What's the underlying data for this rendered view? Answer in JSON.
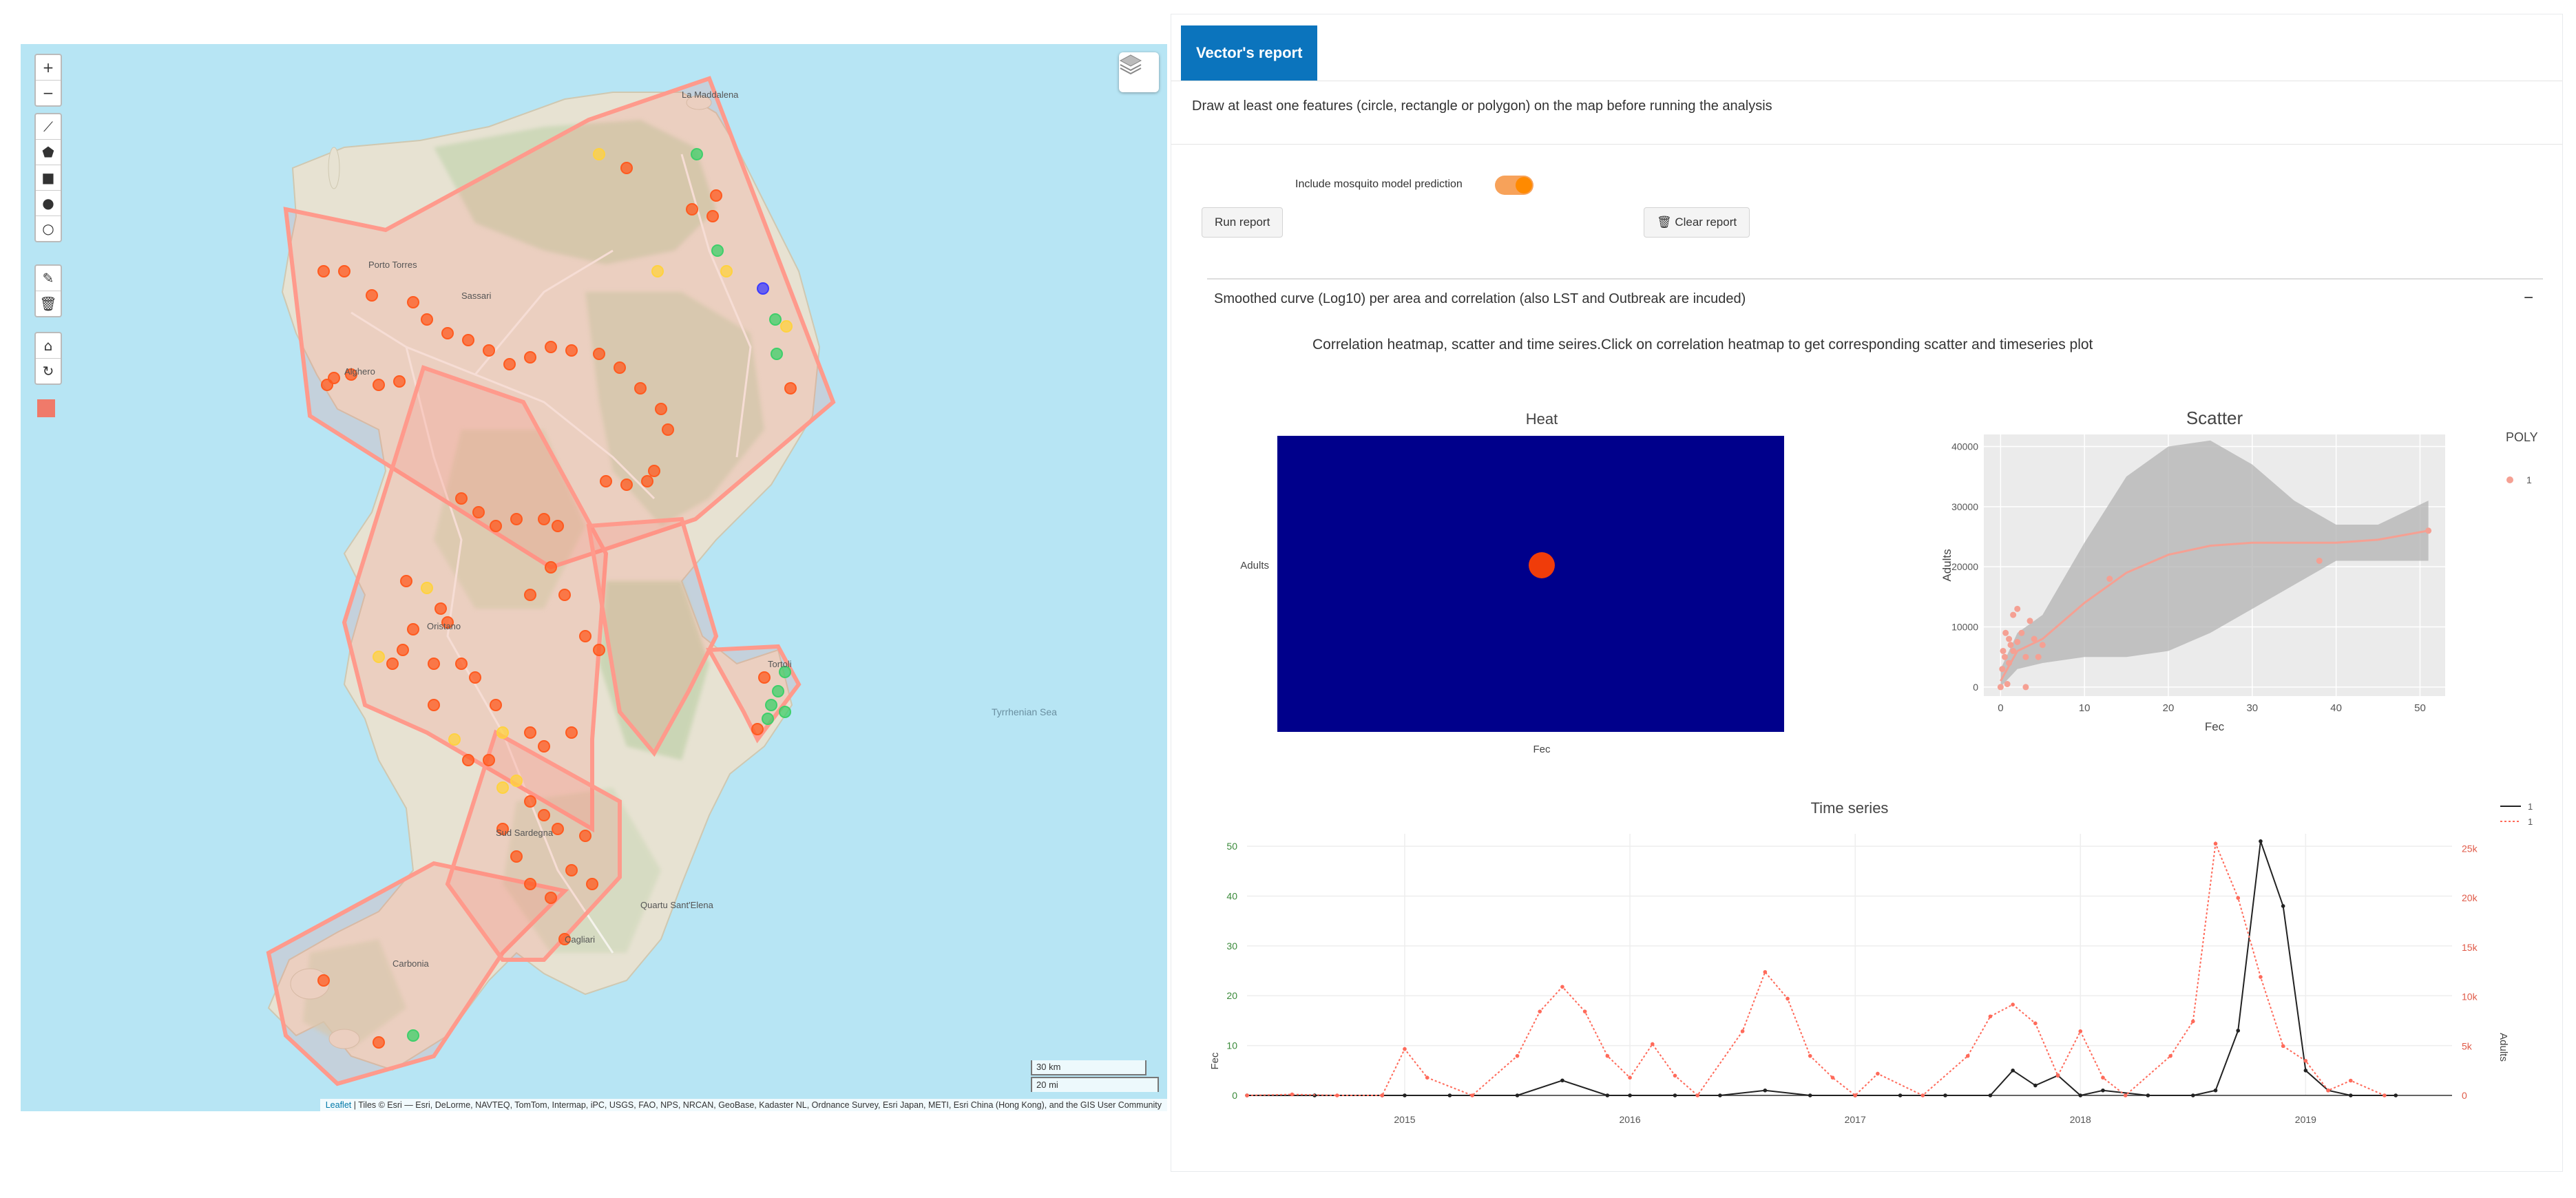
{
  "map": {
    "zoom_in": "+",
    "zoom_out": "−",
    "draw_tools": [
      {
        "icon": "polyline-icon",
        "glyph": "⟋"
      },
      {
        "icon": "polygon-icon",
        "glyph": "⬟"
      },
      {
        "icon": "rectangle-icon",
        "glyph": "■"
      },
      {
        "icon": "circle-icon",
        "glyph": "●"
      },
      {
        "icon": "circlemarker-icon",
        "glyph": "○"
      }
    ],
    "edit_tools": [
      {
        "icon": "edit-icon",
        "glyph": "✎"
      },
      {
        "icon": "delete-icon",
        "glyph": "🗑"
      }
    ],
    "other_tools": [
      {
        "icon": "reset-icon",
        "glyph": "⌂"
      },
      {
        "icon": "refresh-icon",
        "glyph": "↻"
      }
    ],
    "scale_km": "30 km",
    "scale_mi": "20 mi",
    "sea_label": "Tyrrhenian Sea",
    "place_labels": [
      "La Maddalena",
      "Porto Torres",
      "Sassari",
      "Alghero",
      "Oristano",
      "Sud Sardegna",
      "Cagliari",
      "Carbonia",
      "Quartu Sant'Elena",
      "Tortoli"
    ],
    "attribution_leaflet": "Leaflet",
    "attribution_rest": " | Tiles © Esri — Esri, DeLorme, NAVTEQ, TomTom, Intermap, iPC, USGS, FAO, NPS, NRCAN, GeoBase, Kadaster NL, Ordnance Survey, Esri Japan, METI, Esri China (Hong Kong), and the GIS User Community",
    "colors": {
      "sea": "#b7e5f4",
      "polygon": "#ff9a8c",
      "marker_red": "#ff5a1f",
      "marker_yellow": "#ffd23f",
      "marker_green": "#3ecf6a",
      "marker_blue": "#3b3bff"
    }
  },
  "report": {
    "tab_label": "Vector's report",
    "instruction": "Draw at least one features (circle, rectangle or polygon) on the map before running the analysis",
    "toggle_label": "Include mosquito model prediction",
    "toggle_on": true,
    "run_button": "Run report",
    "clear_button": "Clear report",
    "clear_icon": "trash-icon",
    "section_title": "Smoothed curve (Log10) per area and correlation (also LST and Outbreak are incuded)",
    "collapse_symbol": "−",
    "description": "Correlation heatmap, scatter and time seires.Click on correlation heatmap to get corresponding scatter and timeseries plot"
  },
  "chart_data": [
    {
      "type": "heatmap",
      "title": "Heat",
      "x_categories": [
        "Fec"
      ],
      "y_categories": [
        "Adults"
      ],
      "cell_color": "#00008b",
      "marker_color": "#f03c0a"
    },
    {
      "type": "scatter",
      "title": "Scatter",
      "xlabel": "Fec",
      "ylabel": "Adults",
      "xlim": [
        -2,
        53
      ],
      "ylim": [
        -1500,
        42000
      ],
      "x_ticks": [
        0,
        10,
        20,
        30,
        40,
        50
      ],
      "y_ticks": [
        0,
        10000,
        20000,
        30000,
        40000
      ],
      "y_tick_labels": [
        "0",
        "10000",
        "20000",
        "30000",
        "40000"
      ],
      "legend_title": "POLY",
      "series": [
        {
          "name": "1",
          "x": [
            0,
            0.2,
            0.3,
            0.5,
            0.6,
            0.8,
            1,
            1,
            1.2,
            1.5,
            1.5,
            2,
            2,
            2.5,
            3,
            3,
            3.5,
            4,
            4.5,
            5,
            13,
            38,
            51
          ],
          "y": [
            0,
            3000,
            6000,
            5000,
            9000,
            500,
            4000,
            8000,
            7000,
            12000,
            6000,
            13000,
            7500,
            9000,
            5000,
            0,
            11000,
            8000,
            5000,
            7000,
            18000,
            21000,
            26000
          ]
        }
      ],
      "smooth_curve": {
        "x": [
          0,
          2,
          5,
          10,
          15,
          20,
          25,
          30,
          35,
          40,
          45,
          51
        ],
        "y": [
          1000,
          6000,
          8000,
          14000,
          19000,
          22000,
          23500,
          24000,
          24000,
          24000,
          24500,
          26000
        ],
        "ci_upper": [
          3000,
          9000,
          12000,
          24000,
          35000,
          40000,
          41000,
          37000,
          31000,
          27000,
          27000,
          31000
        ],
        "ci_lower": [
          0,
          3000,
          4000,
          5000,
          5000,
          6000,
          9000,
          13000,
          17000,
          21000,
          21000,
          21000
        ]
      },
      "color": "#f5a093"
    },
    {
      "type": "line",
      "title": "Time series",
      "x_tick_labels": [
        "2015",
        "2016",
        "2017",
        "2018",
        "2019"
      ],
      "y_left_label": "Fec",
      "y_left_ticks": [
        0,
        10,
        20,
        30,
        40,
        50
      ],
      "y_right_label": "Adults",
      "y_right_ticks": [
        "0",
        "5k",
        "10k",
        "15k",
        "20k",
        "25k"
      ],
      "y_right_max": 26500,
      "legend": [
        "1",
        "1"
      ],
      "series": [
        {
          "name": "1",
          "axis": "left",
          "style": "solid",
          "color": "#222222",
          "x": [
            2014.3,
            2014.6,
            2014.9,
            2015.0,
            2015.2,
            2015.5,
            2015.7,
            2015.9,
            2016.0,
            2016.2,
            2016.4,
            2016.6,
            2016.8,
            2017.0,
            2017.2,
            2017.4,
            2017.6,
            2017.7,
            2017.8,
            2017.9,
            2018.0,
            2018.1,
            2018.3,
            2018.5,
            2018.6,
            2018.7,
            2018.8,
            2018.9,
            2019.0,
            2019.1,
            2019.2,
            2019.4
          ],
          "y": [
            0,
            0,
            0,
            0,
            0,
            0,
            3,
            0,
            0,
            0,
            0,
            1,
            0,
            0,
            0,
            0,
            0,
            5,
            2,
            4,
            0,
            1,
            0,
            0,
            1,
            13,
            51,
            38,
            5,
            1,
            0,
            0
          ]
        },
        {
          "name": "1",
          "axis": "right",
          "style": "dotted",
          "color": "#ff6a5a",
          "x": [
            2014.3,
            2014.5,
            2014.7,
            2014.9,
            2015.0,
            2015.1,
            2015.3,
            2015.5,
            2015.6,
            2015.7,
            2015.8,
            2015.9,
            2016.0,
            2016.1,
            2016.2,
            2016.3,
            2016.5,
            2016.6,
            2016.7,
            2016.8,
            2016.9,
            2017.0,
            2017.1,
            2017.3,
            2017.5,
            2017.6,
            2017.7,
            2017.8,
            2017.9,
            2018.0,
            2018.1,
            2018.2,
            2018.4,
            2018.5,
            2018.6,
            2018.7,
            2018.8,
            2018.9,
            2019.0,
            2019.1,
            2019.2,
            2019.35
          ],
          "y": [
            0,
            100,
            0,
            0,
            4700,
            1800,
            0,
            4000,
            8500,
            11000,
            8500,
            4000,
            1800,
            5200,
            2000,
            0,
            6500,
            12500,
            9800,
            4000,
            1800,
            0,
            2200,
            0,
            4000,
            8000,
            9200,
            7300,
            2000,
            6500,
            1800,
            0,
            4000,
            7500,
            25500,
            20000,
            12000,
            5000,
            3500,
            500,
            1500,
            0
          ]
        }
      ]
    }
  ]
}
